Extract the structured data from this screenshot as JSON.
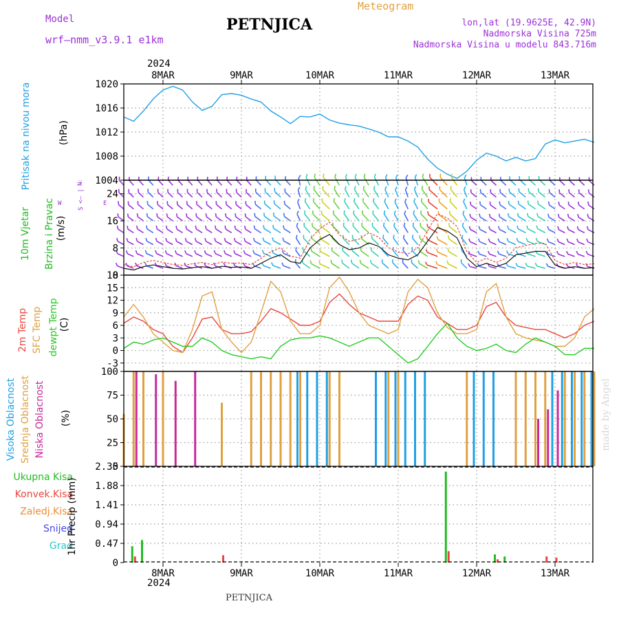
{
  "header": {
    "model_label": "Model",
    "model_name": "wrf–nmm_v3.9.1  e1km",
    "title": "PETNJICA",
    "meteogram": "Meteogram",
    "lonlat": "lon,lat (19.9625E, 42.9N)",
    "altitude": "Nadmorska Visina 725m",
    "model_altitude": "Nadmorska Visina u modelu 843.716m",
    "watermark": "made by Angel",
    "footer": "PETNJICA",
    "year_top": "2024",
    "year_bottom": "2024"
  },
  "colors": {
    "pressure": "#1ea0e6",
    "temp2m": "#e8453c",
    "sfc": "#e0a040",
    "dew": "#22cc22",
    "high": "#1ea0e6",
    "mid": "#e0a040",
    "low": "#c8289a",
    "total": "#22bb22",
    "conv": "#e8453c",
    "frozen": "#f08c30",
    "snow": "#4646e6",
    "hail": "#28c8c8",
    "violet": "#9b30d9"
  },
  "chart_data": [
    {
      "type": "line",
      "panel": "pressure",
      "ylabel_top": "Pritisak na nivou mora",
      "ylabel_unit": "(hPa)",
      "x": [
        "7MAR 12",
        "7MAR 15",
        "7MAR 18",
        "7MAR 21",
        "8MAR 00",
        "8MAR 03",
        "8MAR 06",
        "8MAR 09",
        "8MAR 12",
        "8MAR 15",
        "8MAR 18",
        "8MAR 21",
        "9MAR 00",
        "9MAR 03",
        "9MAR 06",
        "9MAR 09",
        "9MAR 12",
        "9MAR 15",
        "9MAR 18",
        "9MAR 21",
        "10MAR 00",
        "10MAR 03",
        "10MAR 06",
        "10MAR 09",
        "10MAR 12",
        "10MAR 15",
        "10MAR 18",
        "10MAR 21",
        "11MAR 00",
        "11MAR 03",
        "11MAR 06",
        "11MAR 09",
        "11MAR 12",
        "11MAR 15",
        "11MAR 18",
        "11MAR 21",
        "12MAR 00",
        "12MAR 03",
        "12MAR 06",
        "12MAR 09",
        "12MAR 12",
        "12MAR 15",
        "12MAR 18",
        "12MAR 21",
        "13MAR 00",
        "13MAR 03",
        "13MAR 06",
        "13MAR 09",
        "13MAR 12"
      ],
      "values": [
        1014.5,
        1013.8,
        1015.5,
        1017.5,
        1019.0,
        1019.6,
        1019.0,
        1017.0,
        1015.6,
        1016.3,
        1018.2,
        1018.4,
        1018.1,
        1017.5,
        1017.0,
        1015.5,
        1014.5,
        1013.4,
        1014.6,
        1014.5,
        1015.0,
        1014.0,
        1013.5,
        1013.2,
        1013.0,
        1012.5,
        1012.0,
        1011.2,
        1011.2,
        1010.5,
        1009.5,
        1007.5,
        1006.0,
        1005.0,
        1004.3,
        1005.5,
        1007.3,
        1008.5,
        1008.0,
        1007.2,
        1007.8,
        1007.2,
        1007.6,
        1010.0,
        1010.7,
        1010.2,
        1010.5,
        1010.8,
        1010.3
      ],
      "ylim": [
        1004,
        1020
      ],
      "yticks": [
        "1004",
        "1008",
        "1012",
        "1016",
        "1020"
      ],
      "grid": true
    },
    {
      "type": "line",
      "panel": "wind",
      "ylabel_top": "10m Vjetar",
      "ylabel_bottom": "Brzina i Pravac",
      "ylabel_unit": "(m/s)",
      "compass": {
        "n": "N",
        "e": "E",
        "w": "W",
        "s": "S",
        "arrows": "<– | –>",
        "dir": "dir"
      },
      "series": [
        {
          "name": "speed",
          "values": [
            2.0,
            1.5,
            2.5,
            3.0,
            2.5,
            2.0,
            1.8,
            2.2,
            2.5,
            2.0,
            2.6,
            2.3,
            2.4,
            2.0,
            3.5,
            5.0,
            6.0,
            4.0,
            3.5,
            8.0,
            10.5,
            12.0,
            9.0,
            7.5,
            8.0,
            9.5,
            8.5,
            6.0,
            5.0,
            4.5,
            6.0,
            10.0,
            14.0,
            13.0,
            11.0,
            5.0,
            2.5,
            3.5,
            2.5,
            3.5,
            6.0,
            6.5,
            7.0,
            7.0,
            3.0,
            2.0,
            2.5,
            2.0,
            2.2
          ]
        }
      ],
      "ylim": [
        0,
        28
      ],
      "yticks": [
        "0",
        "8",
        "16",
        "24"
      ],
      "grid": true
    },
    {
      "type": "line",
      "panel": "temperature",
      "ylabel_labels": [
        "2m Temp",
        "SFC Temp",
        "dewpt Temp"
      ],
      "ylabel_unit": "(C)",
      "series": [
        {
          "name": "2m Temp",
          "values": [
            6.5,
            8.0,
            7.0,
            5.0,
            4.0,
            1.0,
            -0.5,
            3.0,
            7.5,
            8.0,
            5.0,
            4.0,
            4.0,
            4.5,
            7.0,
            10.0,
            9.0,
            7.5,
            6.0,
            6.0,
            7.0,
            11.5,
            13.5,
            11.0,
            9.0,
            8.0,
            7.0,
            7.0,
            7.0,
            11.0,
            13.0,
            12.0,
            8.0,
            6.5,
            5.0,
            5.0,
            6.0,
            10.5,
            11.5,
            8.0,
            6.0,
            5.5,
            5.0,
            5.0,
            4.0,
            3.0,
            4.0,
            6.0,
            7.0
          ]
        },
        {
          "name": "SFC Temp",
          "values": [
            8.0,
            11.0,
            8.0,
            4.0,
            2.0,
            0.0,
            -0.5,
            5.0,
            13.0,
            14.0,
            5.0,
            2.0,
            -0.5,
            2.0,
            9.0,
            16.5,
            14.0,
            7.0,
            4.0,
            4.0,
            6.0,
            15.0,
            17.5,
            14.0,
            9.0,
            6.0,
            5.0,
            4.0,
            5.0,
            14.0,
            17.0,
            15.0,
            9.0,
            5.5,
            4.0,
            4.0,
            5.0,
            14.0,
            16.0,
            8.0,
            4.0,
            3.0,
            2.5,
            2.0,
            1.0,
            1.0,
            3.0,
            8.0,
            10.0
          ]
        },
        {
          "name": "dewpt Temp",
          "values": [
            0.5,
            2.0,
            1.5,
            2.5,
            3.0,
            2.0,
            1.0,
            1.0,
            3.0,
            2.0,
            0.0,
            -1.0,
            -1.5,
            -2.0,
            -1.5,
            -2.0,
            1.0,
            2.5,
            3.0,
            3.0,
            3.5,
            3.0,
            2.0,
            1.0,
            2.0,
            3.0,
            3.0,
            1.0,
            -1.0,
            -3.0,
            -2.0,
            1.0,
            4.0,
            6.5,
            3.0,
            1.0,
            0.0,
            0.5,
            1.5,
            0.0,
            -0.5,
            1.5,
            3.0,
            2.0,
            1.0,
            -1.0,
            -1.0,
            0.5,
            0.5
          ]
        }
      ],
      "ylim": [
        -5,
        18
      ],
      "yticks": [
        "-3",
        "0",
        "3",
        "6",
        "9",
        "12",
        "15",
        "18"
      ],
      "grid": true
    },
    {
      "type": "bar",
      "panel": "clouds",
      "ylabel_labels": [
        "Visoka Oblacnost",
        "Srednja Oblacnost",
        "Niska Oblacnost"
      ],
      "ylabel_unit": "(%)",
      "series": [
        {
          "name": "Visoka Oblacnost",
          "values": [
            0,
            0,
            0,
            0,
            0,
            0,
            0,
            0,
            0,
            0,
            0,
            0,
            0,
            0,
            0,
            0,
            0,
            0,
            100,
            100,
            100,
            100,
            0,
            0,
            0,
            0,
            100,
            100,
            100,
            100,
            100,
            100,
            0,
            0,
            0,
            0,
            100,
            100,
            100,
            0,
            0,
            0,
            0,
            0,
            100,
            100,
            100,
            100,
            100
          ]
        },
        {
          "name": "Srednja Oblacnost",
          "values": [
            55,
            100,
            100,
            0,
            100,
            0,
            0,
            0,
            0,
            0,
            67,
            0,
            0,
            100,
            100,
            100,
            100,
            100,
            100,
            0,
            0,
            100,
            100,
            0,
            0,
            0,
            0,
            100,
            100,
            0,
            0,
            0,
            0,
            0,
            0,
            100,
            0,
            0,
            0,
            0,
            100,
            100,
            100,
            100,
            0,
            100,
            100,
            100,
            100
          ]
        },
        {
          "name": "Niska Oblacnost",
          "values": [
            0,
            100,
            0,
            97,
            0,
            90,
            0,
            100,
            0,
            0,
            0,
            0,
            0,
            0,
            0,
            0,
            0,
            0,
            0,
            0,
            0,
            0,
            0,
            0,
            0,
            0,
            0,
            0,
            0,
            0,
            0,
            0,
            0,
            0,
            0,
            0,
            0,
            0,
            0,
            0,
            0,
            0,
            50,
            60,
            80,
            0,
            0,
            0,
            0
          ]
        }
      ],
      "ylim": [
        0,
        100
      ],
      "yticks": [
        "0",
        "25",
        "50",
        "75",
        "100"
      ],
      "grid": true
    },
    {
      "type": "bar",
      "panel": "precipitation",
      "ylabel_labels": [
        "Ukupna Kisa",
        "Konvek.Kisa",
        "Zaledj.Kisa",
        "Snijeg",
        "Grad"
      ],
      "ylabel_unit": "1hr Precip (mm)",
      "series": [
        {
          "name": "Ukupna Kisa",
          "values": [
            0,
            0.4,
            0.55,
            0,
            0,
            0,
            0,
            0,
            0,
            0,
            0,
            0,
            0,
            0,
            0,
            0,
            0,
            0,
            0,
            0,
            0,
            0,
            0,
            0,
            0,
            0,
            0,
            0,
            0,
            0,
            0,
            0,
            0,
            2.22,
            0,
            0,
            0,
            0,
            0.2,
            0.15,
            0,
            0,
            0,
            0,
            0,
            0,
            0,
            0,
            0
          ]
        },
        {
          "name": "Konvek.Kisa",
          "values": [
            0,
            0.15,
            0,
            0,
            0,
            0,
            0,
            0,
            0,
            0,
            0.18,
            0,
            0,
            0,
            0,
            0,
            0,
            0,
            0,
            0,
            0,
            0,
            0,
            0,
            0,
            0,
            0,
            0,
            0,
            0,
            0,
            0,
            0,
            0.28,
            0,
            0,
            0,
            0,
            0.08,
            0,
            0,
            0,
            0,
            0.15,
            0.12,
            0,
            0,
            0,
            0
          ]
        }
      ],
      "ylim": [
        0,
        2.35
      ],
      "yticks": [
        "0",
        "0.47",
        "0.94",
        "1.41",
        "1.88",
        "2.35"
      ],
      "grid": true
    }
  ],
  "x_axis": {
    "ticks": [
      "8MAR",
      "9MAR",
      "10MAR",
      "11MAR",
      "12MAR",
      "13MAR"
    ]
  }
}
